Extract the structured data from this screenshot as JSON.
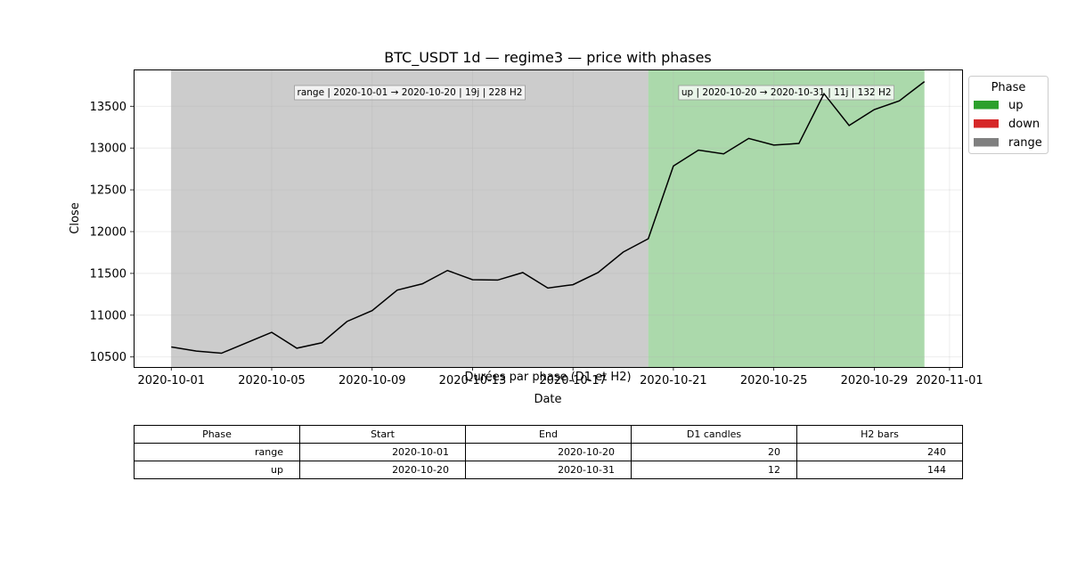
{
  "chart_data": {
    "type": "line",
    "title": "BTC_USDT 1d — regime3 — price with phases",
    "xlabel": "Date",
    "ylabel": "Close",
    "xlim": [
      "2020-09-29T12:00",
      "2020-11-01T12:00"
    ],
    "ylim": [
      10380,
      13940
    ],
    "x_ticks": [
      "2020-10-01",
      "2020-10-05",
      "2020-10-09",
      "2020-10-13",
      "2020-10-17",
      "2020-10-21",
      "2020-10-25",
      "2020-10-29",
      "2020-11-01"
    ],
    "y_ticks": [
      10500,
      11000,
      11500,
      12000,
      12500,
      13000,
      13500
    ],
    "grid": true,
    "series": [
      {
        "color": "#000000",
        "x": [
          "2020-10-01",
          "2020-10-02",
          "2020-10-03",
          "2020-10-04",
          "2020-10-05",
          "2020-10-06",
          "2020-10-07",
          "2020-10-08",
          "2020-10-09",
          "2020-10-10",
          "2020-10-11",
          "2020-10-12",
          "2020-10-13",
          "2020-10-14",
          "2020-10-15",
          "2020-10-16",
          "2020-10-17",
          "2020-10-18",
          "2020-10-19",
          "2020-10-20",
          "2020-10-21",
          "2020-10-22",
          "2020-10-23",
          "2020-10-24",
          "2020-10-25",
          "2020-10-26",
          "2020-10-27",
          "2020-10-28",
          "2020-10-29",
          "2020-10-30",
          "2020-10-31"
        ],
        "y": [
          10620,
          10570,
          10545,
          10670,
          10795,
          10605,
          10670,
          10925,
          11055,
          11300,
          11375,
          11535,
          11425,
          11420,
          11510,
          11325,
          11365,
          11510,
          11755,
          11915,
          12785,
          12975,
          12930,
          13115,
          13035,
          13055,
          13650,
          13270,
          13460,
          13565,
          13795
        ]
      }
    ],
    "phases": [
      {
        "phase": "range",
        "start": "2020-10-01",
        "end": "2020-10-20",
        "color": "#808080",
        "label": "range | 2020-10-01 → 2020-10-20 | 19j | 228 H2"
      },
      {
        "phase": "up",
        "start": "2020-10-20",
        "end": "2020-10-31",
        "color": "#2ca02c",
        "label": "up | 2020-10-20 → 2020-10-31 | 11j | 132 H2"
      }
    ],
    "legend": {
      "title": "Phase",
      "placement": "outside-right",
      "entries": [
        {
          "label": "up",
          "color": "#2ca02c"
        },
        {
          "label": "down",
          "color": "#d62728"
        },
        {
          "label": "range",
          "color": "#808080"
        }
      ]
    }
  },
  "table": {
    "title": "Durées par phase (D1 et H2)",
    "headers": [
      "Phase",
      "Start",
      "End",
      "D1 candles",
      "H2 bars"
    ],
    "rows": [
      [
        "range",
        "2020-10-01",
        "2020-10-20",
        "20",
        "240"
      ],
      [
        "up",
        "2020-10-20",
        "2020-10-31",
        "12",
        "144"
      ]
    ]
  }
}
